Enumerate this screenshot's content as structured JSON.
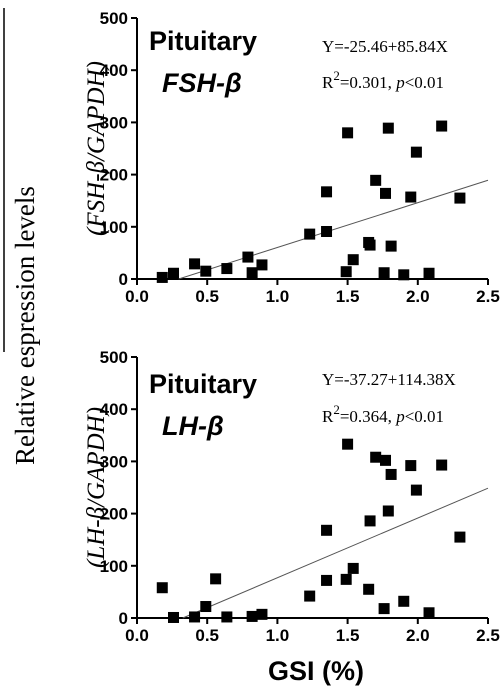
{
  "ylabel_outer": "Relative espression levels",
  "xlabel": "GSI (%)",
  "chart_data": [
    {
      "type": "scatter",
      "title": "Pituitary",
      "gene": "FSH-β",
      "ylabel": "(FSH-β/GAPDH)",
      "equation": "Y=-25.46+85.84X",
      "r2_label": "R",
      "r2_sup": "2",
      "r2_text": "=0.301, ",
      "p_label": "p",
      "p_text": "<0.01",
      "xlim": [
        0.0,
        2.5
      ],
      "ylim": [
        0,
        500
      ],
      "x_ticks": [
        "0.0",
        "0.5",
        "1.0",
        "1.5",
        "2.0",
        "2.5"
      ],
      "y_ticks": [
        "0",
        "100",
        "200",
        "300",
        "400",
        "500"
      ],
      "fit": {
        "intercept": -25.46,
        "slope": 85.84
      },
      "points": [
        {
          "x": 0.18,
          "y": 3
        },
        {
          "x": 0.26,
          "y": 11
        },
        {
          "x": 0.41,
          "y": 29
        },
        {
          "x": 0.49,
          "y": 15
        },
        {
          "x": 0.64,
          "y": 20
        },
        {
          "x": 0.79,
          "y": 42
        },
        {
          "x": 0.82,
          "y": 12
        },
        {
          "x": 0.89,
          "y": 27
        },
        {
          "x": 1.23,
          "y": 86
        },
        {
          "x": 1.35,
          "y": 167
        },
        {
          "x": 1.35,
          "y": 91
        },
        {
          "x": 1.49,
          "y": 14
        },
        {
          "x": 1.5,
          "y": 280
        },
        {
          "x": 1.54,
          "y": 37
        },
        {
          "x": 1.65,
          "y": 70
        },
        {
          "x": 1.66,
          "y": 65
        },
        {
          "x": 1.7,
          "y": 189
        },
        {
          "x": 1.76,
          "y": 12
        },
        {
          "x": 1.77,
          "y": 164
        },
        {
          "x": 1.79,
          "y": 289
        },
        {
          "x": 1.81,
          "y": 63
        },
        {
          "x": 1.9,
          "y": 8
        },
        {
          "x": 1.95,
          "y": 157
        },
        {
          "x": 1.99,
          "y": 243
        },
        {
          "x": 2.08,
          "y": 11
        },
        {
          "x": 2.17,
          "y": 293
        },
        {
          "x": 2.3,
          "y": 155
        }
      ]
    },
    {
      "type": "scatter",
      "title": "Pituitary",
      "gene": "LH-β",
      "ylabel": "(LH-β/GAPDH)",
      "equation": "Y=-37.27+114.38X",
      "r2_label": "R",
      "r2_sup": "2",
      "r2_text": "=0.364, ",
      "p_label": "p",
      "p_text": "<0.01",
      "xlim": [
        0.0,
        2.5
      ],
      "ylim": [
        0,
        500
      ],
      "x_ticks": [
        "0.0",
        "0.5",
        "1.0",
        "1.5",
        "2.0",
        "2.5"
      ],
      "y_ticks": [
        "0",
        "100",
        "200",
        "300",
        "400",
        "500"
      ],
      "fit": {
        "intercept": -37.27,
        "slope": 114.38
      },
      "points": [
        {
          "x": 0.18,
          "y": 58
        },
        {
          "x": 0.26,
          "y": 1
        },
        {
          "x": 0.41,
          "y": 2
        },
        {
          "x": 0.49,
          "y": 22
        },
        {
          "x": 0.56,
          "y": 75
        },
        {
          "x": 0.64,
          "y": 2
        },
        {
          "x": 0.82,
          "y": 3
        },
        {
          "x": 0.89,
          "y": 7
        },
        {
          "x": 1.23,
          "y": 42
        },
        {
          "x": 1.35,
          "y": 168
        },
        {
          "x": 1.35,
          "y": 72
        },
        {
          "x": 1.49,
          "y": 74
        },
        {
          "x": 1.5,
          "y": 333
        },
        {
          "x": 1.54,
          "y": 95
        },
        {
          "x": 1.65,
          "y": 55
        },
        {
          "x": 1.66,
          "y": 186
        },
        {
          "x": 1.7,
          "y": 308
        },
        {
          "x": 1.76,
          "y": 18
        },
        {
          "x": 1.77,
          "y": 302
        },
        {
          "x": 1.79,
          "y": 205
        },
        {
          "x": 1.81,
          "y": 275
        },
        {
          "x": 1.9,
          "y": 32
        },
        {
          "x": 1.95,
          "y": 292
        },
        {
          "x": 1.99,
          "y": 245
        },
        {
          "x": 2.08,
          "y": 10
        },
        {
          "x": 2.17,
          "y": 293
        },
        {
          "x": 2.3,
          "y": 155
        }
      ]
    }
  ]
}
